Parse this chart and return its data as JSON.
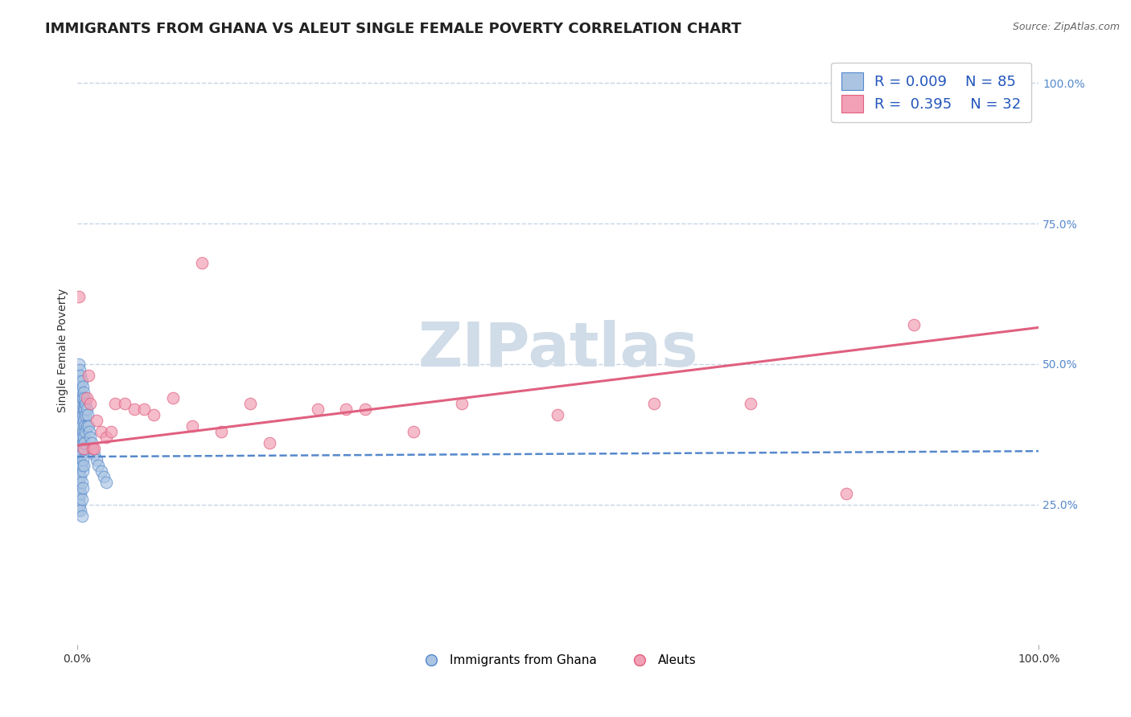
{
  "title": "IMMIGRANTS FROM GHANA VS ALEUT SINGLE FEMALE POVERTY CORRELATION CHART",
  "source": "Source: ZipAtlas.com",
  "ylabel": "Single Female Poverty",
  "legend_label1": "Immigrants from Ghana",
  "legend_label2": "Aleuts",
  "r1": 0.009,
  "n1": 85,
  "r2": 0.395,
  "n2": 32,
  "blue_color": "#aac4e2",
  "pink_color": "#f2a0b5",
  "blue_line_color": "#5588cc",
  "pink_line_color": "#e06080",
  "legend_r_color": "#2255bb",
  "watermark": "ZIPatlas",
  "blue_scatter_x": [
    0.001,
    0.001,
    0.001,
    0.001,
    0.001,
    0.001,
    0.001,
    0.001,
    0.001,
    0.001,
    0.002,
    0.002,
    0.002,
    0.002,
    0.002,
    0.002,
    0.002,
    0.002,
    0.002,
    0.002,
    0.003,
    0.003,
    0.003,
    0.003,
    0.003,
    0.003,
    0.003,
    0.003,
    0.003,
    0.003,
    0.004,
    0.004,
    0.004,
    0.004,
    0.004,
    0.004,
    0.004,
    0.004,
    0.004,
    0.004,
    0.005,
    0.005,
    0.005,
    0.005,
    0.005,
    0.005,
    0.005,
    0.005,
    0.005,
    0.005,
    0.006,
    0.006,
    0.006,
    0.006,
    0.006,
    0.006,
    0.006,
    0.006,
    0.007,
    0.007,
    0.007,
    0.007,
    0.007,
    0.007,
    0.008,
    0.008,
    0.008,
    0.008,
    0.009,
    0.009,
    0.009,
    0.01,
    0.01,
    0.011,
    0.012,
    0.013,
    0.014,
    0.015,
    0.016,
    0.018,
    0.02,
    0.022,
    0.025,
    0.028,
    0.03
  ],
  "blue_scatter_y": [
    0.48,
    0.45,
    0.43,
    0.4,
    0.38,
    0.35,
    0.33,
    0.3,
    0.27,
    0.24,
    0.5,
    0.47,
    0.44,
    0.42,
    0.39,
    0.37,
    0.34,
    0.31,
    0.29,
    0.26,
    0.49,
    0.46,
    0.44,
    0.41,
    0.39,
    0.36,
    0.33,
    0.31,
    0.28,
    0.25,
    0.48,
    0.45,
    0.43,
    0.4,
    0.37,
    0.35,
    0.32,
    0.3,
    0.27,
    0.24,
    0.47,
    0.44,
    0.42,
    0.39,
    0.37,
    0.34,
    0.32,
    0.29,
    0.26,
    0.23,
    0.46,
    0.44,
    0.41,
    0.38,
    0.36,
    0.33,
    0.31,
    0.28,
    0.45,
    0.42,
    0.4,
    0.37,
    0.35,
    0.32,
    0.44,
    0.42,
    0.39,
    0.36,
    0.43,
    0.41,
    0.38,
    0.42,
    0.39,
    0.41,
    0.39,
    0.38,
    0.37,
    0.36,
    0.35,
    0.34,
    0.33,
    0.32,
    0.31,
    0.3,
    0.29
  ],
  "pink_scatter_x": [
    0.002,
    0.007,
    0.01,
    0.012,
    0.014,
    0.016,
    0.018,
    0.02,
    0.025,
    0.03,
    0.035,
    0.04,
    0.05,
    0.06,
    0.07,
    0.08,
    0.1,
    0.12,
    0.13,
    0.15,
    0.18,
    0.2,
    0.25,
    0.28,
    0.3,
    0.35,
    0.4,
    0.5,
    0.6,
    0.7,
    0.8,
    0.87
  ],
  "pink_scatter_y": [
    0.62,
    0.35,
    0.44,
    0.48,
    0.43,
    0.35,
    0.35,
    0.4,
    0.38,
    0.37,
    0.38,
    0.43,
    0.43,
    0.42,
    0.42,
    0.41,
    0.44,
    0.39,
    0.68,
    0.38,
    0.43,
    0.36,
    0.42,
    0.42,
    0.42,
    0.38,
    0.43,
    0.41,
    0.43,
    0.43,
    0.27,
    0.57
  ],
  "xlim": [
    0.0,
    1.0
  ],
  "ylim": [
    0.0,
    1.05
  ],
  "ytick_values": [
    0.0,
    0.25,
    0.5,
    0.75,
    1.0
  ],
  "ytick_labels_right": [
    "",
    "25.0%",
    "50.0%",
    "75.0%",
    "100.0%"
  ],
  "xtick_values": [
    0.0,
    1.0
  ],
  "xtick_labels": [
    "0.0%",
    "100.0%"
  ],
  "grid_color": "#c5d5e5",
  "bg_color": "#ffffff",
  "watermark_color": "#d0dce8",
  "title_fontsize": 13,
  "axis_fontsize": 10,
  "legend_fontsize": 13,
  "blue_line_start_y": 0.335,
  "blue_line_end_y": 0.345,
  "pink_line_start_y": 0.355,
  "pink_line_end_y": 0.565
}
